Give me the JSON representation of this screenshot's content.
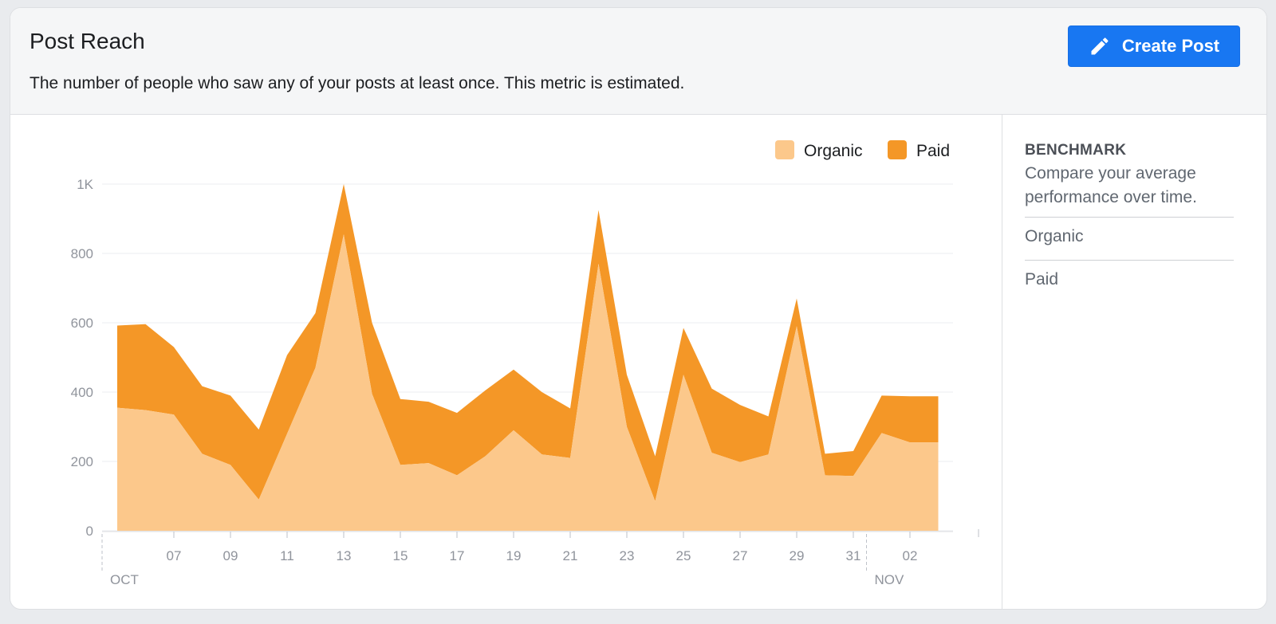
{
  "header": {
    "title": "Post Reach",
    "subtitle": "The number of people who saw any of your posts at least once. This metric is estimated.",
    "create_button": "Create Post"
  },
  "benchmark": {
    "title": "BENCHMARK",
    "description": "Compare your average performance over time.",
    "items": [
      "Organic",
      "Paid"
    ]
  },
  "colors": {
    "organic": "#fcc88b",
    "paid": "#f49727",
    "accent": "#1877f2"
  },
  "chart_data": {
    "type": "area",
    "stacked": true,
    "legend_position": "top-right",
    "legend": [
      "Organic",
      "Paid"
    ],
    "grid": true,
    "ylim": [
      0,
      1000
    ],
    "yticks": [
      {
        "value": 0,
        "label": "0"
      },
      {
        "value": 200,
        "label": "200"
      },
      {
        "value": 400,
        "label": "400"
      },
      {
        "value": 600,
        "label": "600"
      },
      {
        "value": 800,
        "label": "800"
      },
      {
        "value": 1000,
        "label": "1K"
      }
    ],
    "x": [
      "Oct 5",
      "Oct 6",
      "Oct 7",
      "Oct 8",
      "Oct 9",
      "Oct 10",
      "Oct 11",
      "Oct 12",
      "Oct 13",
      "Oct 14",
      "Oct 15",
      "Oct 16",
      "Oct 17",
      "Oct 18",
      "Oct 19",
      "Oct 20",
      "Oct 21",
      "Oct 22",
      "Oct 23",
      "Oct 24",
      "Oct 25",
      "Oct 26",
      "Oct 27",
      "Oct 28",
      "Oct 29",
      "Oct 30",
      "Oct 31",
      "Nov 1",
      "Nov 2",
      "Nov 3"
    ],
    "xticks": [
      "07",
      "09",
      "11",
      "13",
      "15",
      "17",
      "19",
      "21",
      "23",
      "25",
      "27",
      "29",
      "31",
      "02"
    ],
    "month_labels": [
      "OCT",
      "NOV"
    ],
    "series": [
      {
        "name": "Organic",
        "values": [
          355,
          348,
          335,
          222,
          190,
          90,
          280,
          470,
          855,
          395,
          190,
          195,
          160,
          215,
          290,
          220,
          210,
          770,
          300,
          85,
          450,
          225,
          198,
          220,
          590,
          160,
          158,
          282,
          255,
          255
        ]
      },
      {
        "name": "Paid",
        "values": [
          237,
          248,
          195,
          195,
          200,
          202,
          227,
          158,
          145,
          205,
          190,
          177,
          180,
          190,
          175,
          180,
          143,
          155,
          150,
          130,
          135,
          185,
          165,
          110,
          80,
          62,
          72,
          108,
          133,
          133
        ]
      }
    ]
  }
}
